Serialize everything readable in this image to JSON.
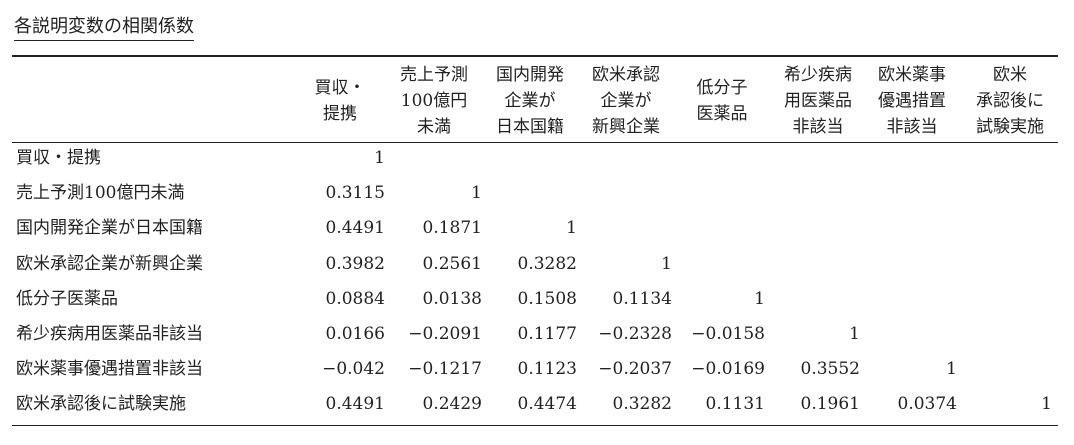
{
  "title": "各説明変数の相関係数",
  "table": {
    "headers": [
      [
        "買収・",
        "提携"
      ],
      [
        "売上予測",
        "100億円",
        "未満"
      ],
      [
        "国内開発",
        "企業が",
        "日本国籍"
      ],
      [
        "欧米承認",
        "企業が",
        "新興企業"
      ],
      [
        "低分子",
        "医薬品"
      ],
      [
        "希少疾病",
        "用医薬品",
        "非該当"
      ],
      [
        "欧米薬事",
        "優遇措置",
        "非該当"
      ],
      [
        "欧米",
        "承認後に",
        "試験実施"
      ]
    ],
    "rows": [
      {
        "label": "買収・提携",
        "cells": [
          "1"
        ]
      },
      {
        "label": "売上予測100億円未満",
        "cells": [
          "0.3115",
          "1"
        ]
      },
      {
        "label": "国内開発企業が日本国籍",
        "cells": [
          "0.4491",
          "0.1871",
          "1"
        ]
      },
      {
        "label": "欧米承認企業が新興企業",
        "cells": [
          "0.3982",
          "0.2561",
          "0.3282",
          "1"
        ]
      },
      {
        "label": "低分子医薬品",
        "cells": [
          "0.0884",
          "0.0138",
          "0.1508",
          "0.1134",
          "1"
        ]
      },
      {
        "label": "希少疾病用医薬品非該当",
        "cells": [
          "0.0166",
          "−0.2091",
          "0.1177",
          "−0.2328",
          "−0.0158",
          "1"
        ]
      },
      {
        "label": "欧米薬事優遇措置非該当",
        "cells": [
          "−0.042",
          "−0.1217",
          "0.1123",
          "−0.2037",
          "−0.0169",
          "0.3552",
          "1"
        ]
      },
      {
        "label": "欧米承認後に試験実施",
        "cells": [
          "0.4491",
          "0.2429",
          "0.4474",
          "0.3282",
          "0.1131",
          "0.1961",
          "0.0374",
          "1"
        ]
      }
    ]
  }
}
